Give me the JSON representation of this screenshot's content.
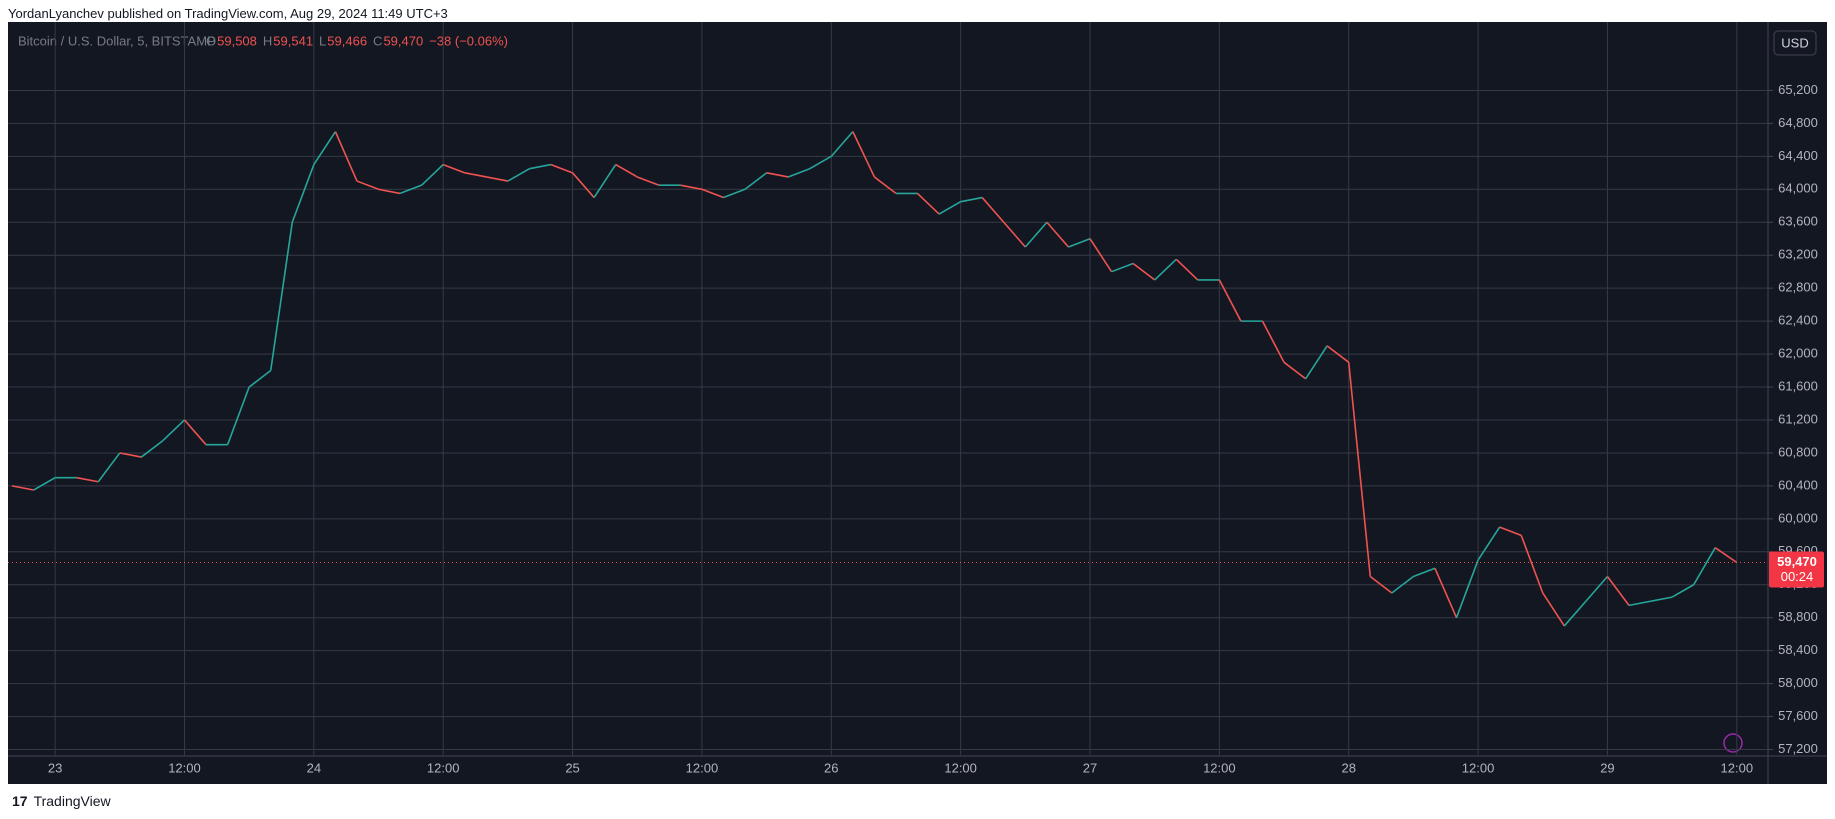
{
  "header": "YordanLyanchev published on TradingView.com, Aug 29, 2024 11:49 UTC+3",
  "legend": {
    "symbol": "Bitcoin / U.S. Dollar, 5, BITSTAMP",
    "o_key": "O",
    "open": "59,508",
    "h_key": "H",
    "high": "59,541",
    "l_key": "L",
    "low": "59,466",
    "c_key": "C",
    "close": "59,470",
    "change": "−38 (−0.06%)"
  },
  "currency_button": "USD",
  "footer": "TradingView",
  "chart_data": {
    "type": "line",
    "x_labels": [
      "23",
      "12:00",
      "24",
      "12:00",
      "25",
      "12:00",
      "26",
      "12:00",
      "27",
      "12:00",
      "28",
      "12:00",
      "29",
      "12:00"
    ],
    "up_color": "#26a69a",
    "down_color": "#ef5350",
    "series": [
      {
        "name": "Bitcoin / U.S. Dollar",
        "values": [
          60400,
          60350,
          60500,
          60500,
          60450,
          60800,
          60750,
          60950,
          61200,
          60900,
          60900,
          61600,
          61800,
          63600,
          64300,
          64700,
          64100,
          64000,
          63950,
          64050,
          64300,
          64200,
          64150,
          64100,
          64250,
          64300,
          64200,
          63900,
          64300,
          64150,
          64050,
          64050,
          64000,
          63900,
          64000,
          64200,
          64150,
          64250,
          64400,
          64700,
          64150,
          63950,
          63950,
          63700,
          63850,
          63900,
          63600,
          63300,
          63600,
          63300,
          63400,
          63000,
          63100,
          62900,
          63150,
          62900,
          62900,
          62400,
          62400,
          61900,
          61700,
          62100,
          61900,
          59300,
          59100,
          59300,
          59400,
          58800,
          59500,
          59900,
          59800,
          59100,
          58700,
          59000,
          59300,
          58950,
          59000,
          59050,
          59200,
          59650,
          59470
        ]
      }
    ],
    "ylim": [
      57170,
      65970
    ],
    "yticks": [
      {
        "value": 57200,
        "label": "57,200"
      },
      {
        "value": 57600,
        "label": "57,600"
      },
      {
        "value": 58000,
        "label": "58,000"
      },
      {
        "value": 58400,
        "label": "58,400"
      },
      {
        "value": 58800,
        "label": "58,800"
      },
      {
        "value": 59200,
        "label": "59,200"
      },
      {
        "value": 59600,
        "label": "59,600"
      },
      {
        "value": 60000,
        "label": "60,000"
      },
      {
        "value": 60400,
        "label": "60,400"
      },
      {
        "value": 60800,
        "label": "60,800"
      },
      {
        "value": 61200,
        "label": "61,200"
      },
      {
        "value": 61600,
        "label": "61,600"
      },
      {
        "value": 62000,
        "label": "62,000"
      },
      {
        "value": 62400,
        "label": "62,400"
      },
      {
        "value": 62800,
        "label": "62,800"
      },
      {
        "value": 63200,
        "label": "63,200"
      },
      {
        "value": 63600,
        "label": "63,600"
      },
      {
        "value": 64000,
        "label": "64,000"
      },
      {
        "value": 64400,
        "label": "64,400"
      },
      {
        "value": 64800,
        "label": "64,800"
      },
      {
        "value": 65200,
        "label": "65,200"
      }
    ],
    "last_price": {
      "value": 59470,
      "label": "59,470"
    },
    "countdown": "00:24",
    "grid": true
  }
}
